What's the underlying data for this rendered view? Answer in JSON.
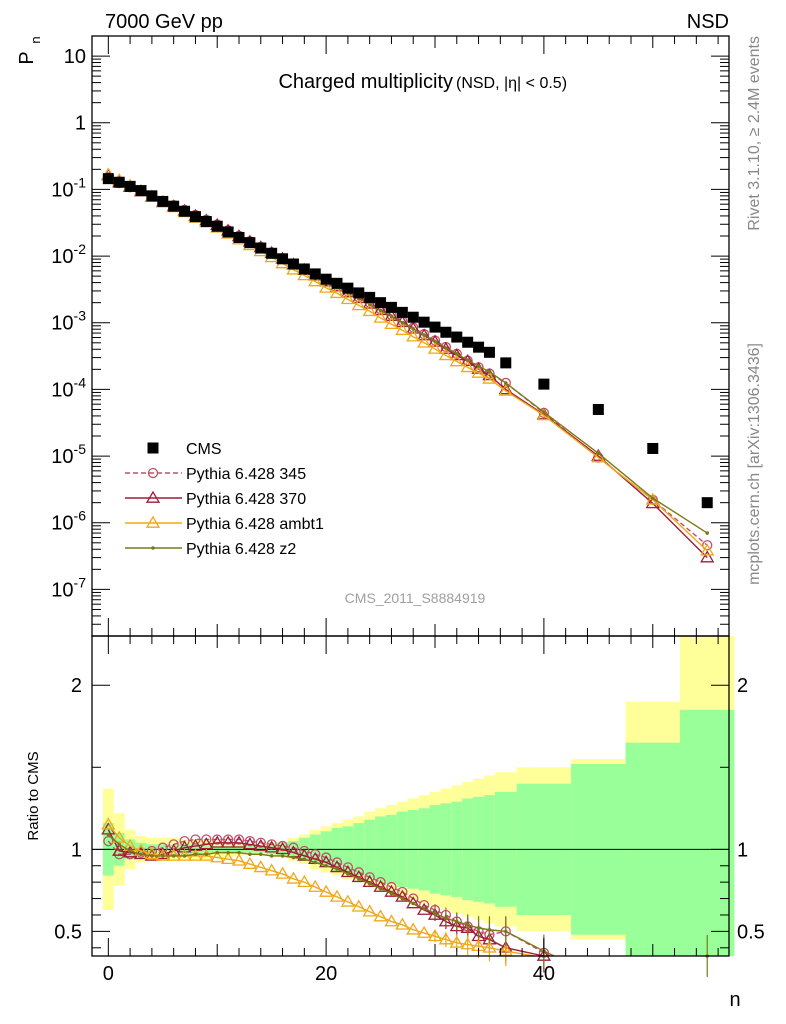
{
  "header": {
    "left": "7000 GeV pp",
    "right": "NSD"
  },
  "side_labels": {
    "top": "Rivet 3.1.10, ≥ 2.4M events",
    "bottom": "mcplots.cern.ch [arXiv:1306.3436]"
  },
  "chart_data": {
    "type": "scatter",
    "title": "Charged multiplicity",
    "title_suffix": "(NSD, |η| < 0.5)",
    "watermark": "CMS_2011_S8884919",
    "xlabel": "n",
    "ylabel": "P",
    "ylabel_sub": "n",
    "ratio_ylabel": "Ratio to CMS",
    "xlim": [
      -1.5,
      57
    ],
    "ylim": [
      2e-08,
      20
    ],
    "y_scale": "log",
    "ratio_ylim": [
      0.35,
      2.3
    ],
    "x_ticks": [
      "0",
      "20",
      "40"
    ],
    "y_ticks": [
      "10",
      "1",
      "10^-1",
      "10^-2",
      "10^-3",
      "10^-4",
      "10^-5",
      "10^-6",
      "10^-7"
    ],
    "ratio_ticks": [
      "0.5",
      "1",
      "2"
    ],
    "legend_position": "bottom-left",
    "reference": {
      "name": "CMS",
      "x": [
        0,
        1,
        2,
        3,
        4,
        5,
        6,
        7,
        8,
        9,
        10,
        11,
        12,
        13,
        14,
        15,
        16,
        17,
        18,
        19,
        20,
        21,
        22,
        23,
        24,
        25,
        26,
        27,
        28,
        29,
        30,
        31,
        32,
        33,
        34,
        35,
        36.5,
        40,
        45,
        50,
        55
      ],
      "y": [
        0.145,
        0.128,
        0.111,
        0.096,
        0.08,
        0.066,
        0.056,
        0.047,
        0.039,
        0.033,
        0.028,
        0.023,
        0.019,
        0.0159,
        0.0132,
        0.011,
        0.0091,
        0.0076,
        0.0064,
        0.0054,
        0.0045,
        0.0039,
        0.0033,
        0.0028,
        0.0024,
        0.002,
        0.0017,
        0.00143,
        0.00121,
        0.00102,
        0.00086,
        0.00072,
        0.00061,
        0.00051,
        0.00043,
        0.00036,
        0.00025,
        0.00012,
        5e-05,
        1.3e-05,
        2e-06
      ]
    },
    "series": [
      {
        "name": "Pythia 6.428 345",
        "color": "#c0506a",
        "marker": "circle",
        "dashed": true,
        "ratio": [
          1.05,
          0.97,
          0.97,
          0.98,
          0.99,
          1.01,
          1.03,
          1.05,
          1.06,
          1.06,
          1.06,
          1.06,
          1.06,
          1.05,
          1.04,
          1.03,
          1.02,
          1.01,
          0.99,
          0.97,
          0.95,
          0.92,
          0.89,
          0.86,
          0.83,
          0.8,
          0.77,
          0.74,
          0.7,
          0.66,
          0.63,
          0.6,
          0.56,
          0.53,
          0.5,
          0.48,
          0.5,
          0.37,
          0.19,
          0.17,
          0.23
        ]
      },
      {
        "name": "Pythia 6.428 370",
        "color": "#a01c38",
        "marker": "triangle",
        "dashed": false,
        "ratio": [
          1.12,
          0.99,
          0.98,
          0.97,
          0.96,
          0.97,
          0.99,
          1.01,
          1.02,
          1.03,
          1.04,
          1.04,
          1.04,
          1.03,
          1.02,
          1.01,
          1.0,
          0.98,
          0.96,
          0.94,
          0.92,
          0.89,
          0.86,
          0.83,
          0.8,
          0.77,
          0.74,
          0.71,
          0.67,
          0.63,
          0.6,
          0.56,
          0.53,
          0.52,
          0.47,
          0.45,
          0.4,
          0.35,
          0.2,
          0.15,
          0.15
        ]
      },
      {
        "name": "Pythia 6.428 ambt1",
        "color": "#f0a818",
        "marker": "triangle",
        "dashed": false,
        "ratio": [
          1.15,
          1.07,
          1.02,
          0.99,
          0.97,
          0.96,
          0.96,
          0.96,
          0.96,
          0.96,
          0.95,
          0.94,
          0.93,
          0.91,
          0.89,
          0.87,
          0.85,
          0.82,
          0.8,
          0.77,
          0.74,
          0.71,
          0.68,
          0.65,
          0.62,
          0.59,
          0.56,
          0.54,
          0.51,
          0.49,
          0.47,
          0.45,
          0.43,
          0.42,
          0.41,
          0.4,
          0.38,
          0.34,
          0.19,
          0.17,
          0.19
        ]
      },
      {
        "name": "Pythia 6.428 z2",
        "color": "#7a7a1a",
        "marker": "dot",
        "dashed": false,
        "ratio": [
          1.09,
          1.03,
          0.99,
          0.97,
          0.96,
          0.96,
          0.96,
          0.96,
          0.97,
          0.97,
          0.98,
          0.98,
          0.98,
          0.97,
          0.97,
          0.96,
          0.96,
          0.95,
          0.94,
          0.92,
          0.9,
          0.88,
          0.85,
          0.82,
          0.79,
          0.76,
          0.73,
          0.7,
          0.67,
          0.64,
          0.61,
          0.58,
          0.56,
          0.54,
          0.52,
          0.51,
          0.5,
          0.38,
          0.22,
          0.18,
          0.35
        ]
      }
    ],
    "bands": {
      "x_edges": [
        -0.5,
        0.5,
        1.5,
        2.5,
        3.5,
        4.5,
        5.5,
        6.5,
        7.5,
        8.5,
        9.5,
        10.5,
        11.5,
        12.5,
        13.5,
        14.5,
        15.5,
        16.5,
        17.5,
        18.5,
        19.5,
        20.5,
        21.5,
        22.5,
        23.5,
        24.5,
        25.5,
        26.5,
        27.5,
        28.5,
        29.5,
        30.5,
        31.5,
        32.5,
        33.5,
        34.5,
        35.5,
        37.5,
        42.5,
        47.5,
        52.5,
        57.5
      ],
      "yellow_half": [
        0.37,
        0.22,
        0.12,
        0.08,
        0.07,
        0.07,
        0.07,
        0.06,
        0.06,
        0.06,
        0.05,
        0.05,
        0.04,
        0.03,
        0.03,
        0.04,
        0.05,
        0.07,
        0.09,
        0.12,
        0.14,
        0.16,
        0.18,
        0.2,
        0.23,
        0.25,
        0.27,
        0.29,
        0.31,
        0.33,
        0.35,
        0.37,
        0.39,
        0.41,
        0.43,
        0.45,
        0.47,
        0.5,
        0.55,
        0.9,
        2.0
      ],
      "green_half": [
        0.16,
        0.1,
        0.06,
        0.04,
        0.03,
        0.03,
        0.03,
        0.03,
        0.03,
        0.02,
        0.02,
        0.02,
        0.02,
        0.02,
        0.02,
        0.03,
        0.04,
        0.05,
        0.07,
        0.09,
        0.11,
        0.13,
        0.14,
        0.16,
        0.18,
        0.2,
        0.21,
        0.23,
        0.24,
        0.25,
        0.27,
        0.28,
        0.29,
        0.31,
        0.32,
        0.33,
        0.35,
        0.4,
        0.52,
        0.65,
        0.85
      ]
    }
  }
}
